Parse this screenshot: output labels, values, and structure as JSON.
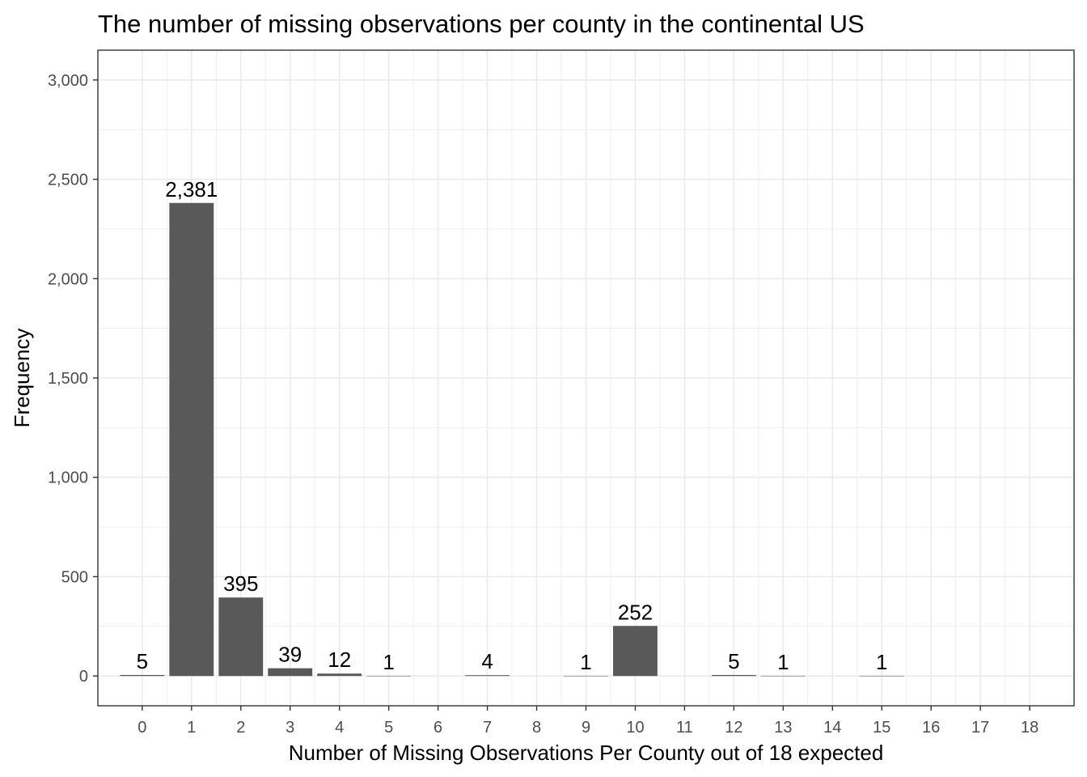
{
  "chart_data": {
    "type": "bar",
    "title": "The number of missing observations per county in the continental US",
    "xlabel": "Number of Missing Observations Per County out of 18 expected",
    "ylabel": "Frequency",
    "x_ticks": [
      "0",
      "1",
      "2",
      "3",
      "4",
      "5",
      "6",
      "7",
      "8",
      "9",
      "10",
      "11",
      "12",
      "13",
      "14",
      "15",
      "16",
      "17",
      "18"
    ],
    "y_ticks": [
      0,
      500,
      1000,
      1500,
      2000,
      2500,
      3000
    ],
    "y_tick_labels": [
      "0",
      "500",
      "1,000",
      "1,500",
      "2,000",
      "2,500",
      "3,000"
    ],
    "ylim": [
      -150,
      3150
    ],
    "xlim": [
      -0.9,
      18.9
    ],
    "grid": true,
    "bar_color": "#595959",
    "bars": [
      {
        "x": 0,
        "value": 5,
        "label": "5"
      },
      {
        "x": 1,
        "value": 2381,
        "label": "2,381"
      },
      {
        "x": 2,
        "value": 395,
        "label": "395"
      },
      {
        "x": 3,
        "value": 39,
        "label": "39"
      },
      {
        "x": 4,
        "value": 12,
        "label": "12"
      },
      {
        "x": 5,
        "value": 1,
        "label": "1"
      },
      {
        "x": 7,
        "value": 4,
        "label": "4"
      },
      {
        "x": 9,
        "value": 1,
        "label": "1"
      },
      {
        "x": 10,
        "value": 252,
        "label": "252"
      },
      {
        "x": 12,
        "value": 5,
        "label": "5"
      },
      {
        "x": 13,
        "value": 1,
        "label": "1"
      },
      {
        "x": 15,
        "value": 1,
        "label": "1"
      }
    ]
  }
}
